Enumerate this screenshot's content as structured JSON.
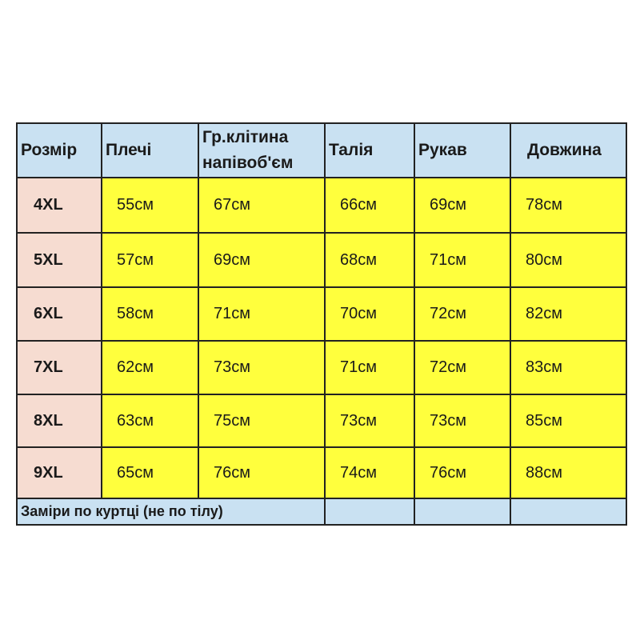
{
  "table": {
    "headers": [
      "Розмір",
      "Плечі",
      "Гр.клітина\nнапівоб'єм",
      "Талія",
      "Рукав",
      "Довжина"
    ],
    "header_line1": "Гр.клітина",
    "header_line2": "напівоб'єм",
    "rows": [
      [
        "4XL",
        "55см",
        "67см",
        "66см",
        "69см",
        "78см"
      ],
      [
        "5XL",
        "57см",
        "69см",
        "68см",
        "71см",
        "80см"
      ],
      [
        "6XL",
        "58см",
        "71см",
        "70см",
        "72см",
        "82см"
      ],
      [
        "7XL",
        "62см",
        "73см",
        "71см",
        "72см",
        "83см"
      ],
      [
        "8XL",
        "63см",
        "75см",
        "73см",
        "73см",
        "85см"
      ],
      [
        "9XL",
        "65см",
        "76см",
        "74см",
        "76см",
        "88см"
      ]
    ],
    "footer_note": "Заміри по куртці (не по тілу)"
  },
  "colors": {
    "header": "#c9e1f2",
    "size_column": "#f6dcd1",
    "values": "#ffff3d"
  }
}
